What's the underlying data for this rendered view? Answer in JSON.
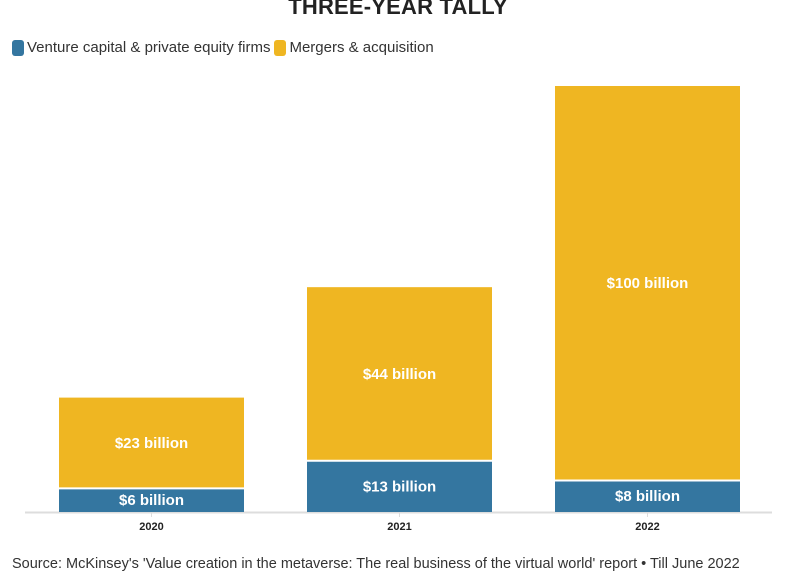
{
  "chart_data": {
    "type": "bar",
    "stacked": true,
    "title": "THREE-YEAR TALLY",
    "categories": [
      "2020",
      "2021",
      "2022"
    ],
    "series": [
      {
        "name": "Venture capital & private equity firms",
        "color": "#3476a0",
        "values": [
          6,
          13,
          8
        ],
        "labels": [
          "$6 billion",
          "$13 billion",
          "$8 billion"
        ]
      },
      {
        "name": "Mergers & acquisition",
        "color": "#efb622",
        "values": [
          23,
          44,
          100
        ],
        "labels": [
          "$23 billion",
          "$44 billion",
          "$100 billion"
        ]
      }
    ],
    "unit": "billion USD",
    "ylim": [
      0,
      108
    ],
    "grid": false,
    "legend_position": "top-left",
    "source": "Source: McKinsey's 'Value creation in the metaverse: The real business of the virtual world' report • Till June 2022"
  }
}
